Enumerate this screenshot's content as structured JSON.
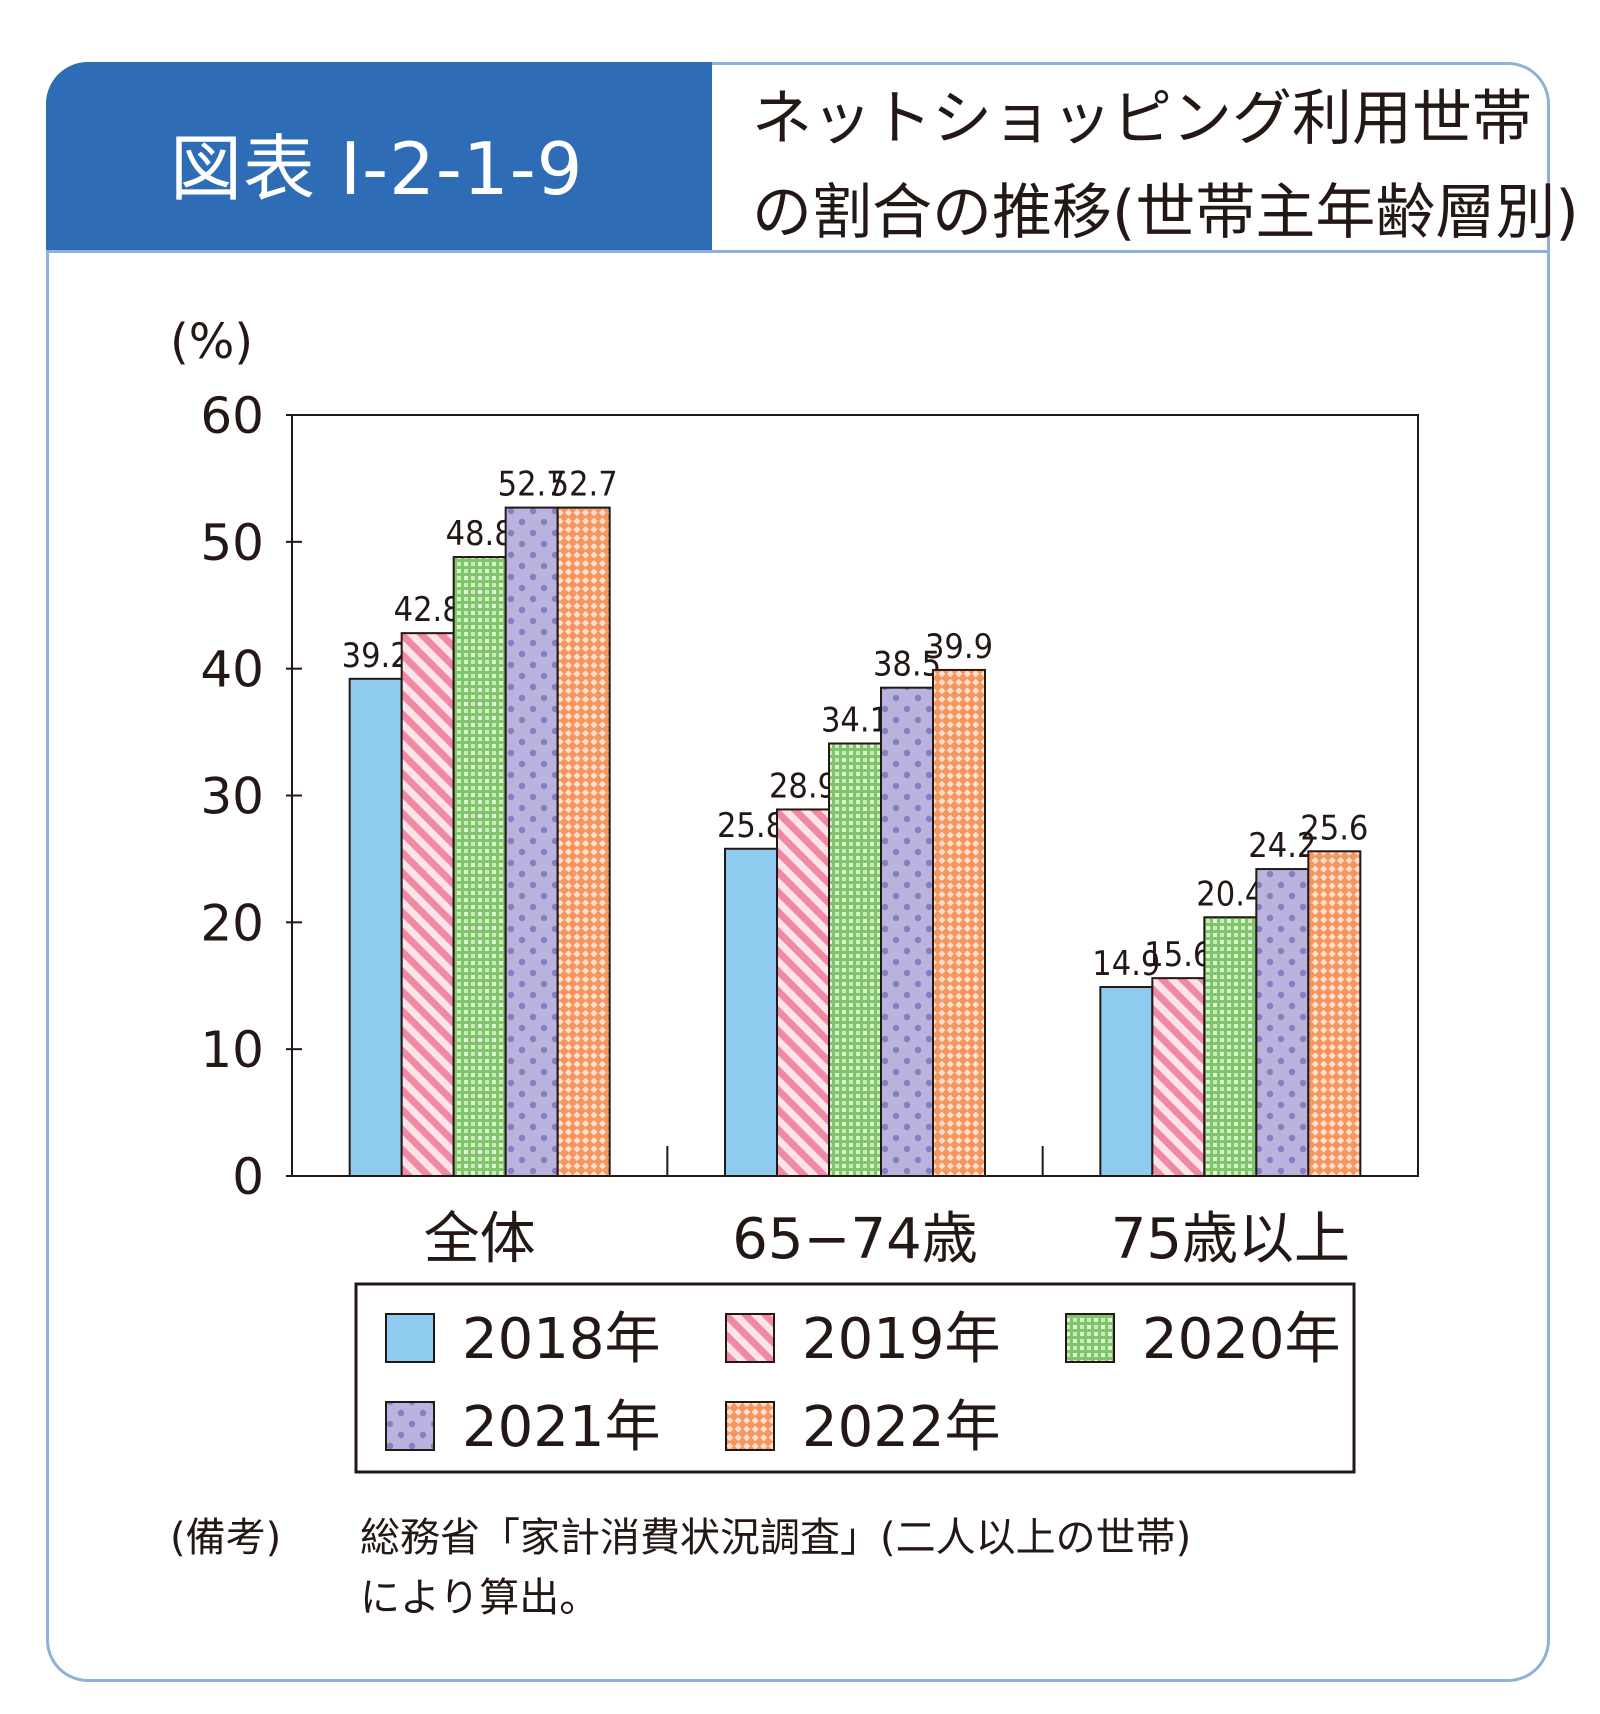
{
  "figure": {
    "id": "図表 I-2-1-9",
    "title_lines": [
      "ネットショッピング利用世帯",
      "の割合の推移(世帯主年齢層別)"
    ]
  },
  "note": {
    "label": "(備考)",
    "lines": [
      "総務省「家計消費状況調査」(二人以上の世帯)",
      "により算出。"
    ]
  },
  "chart_data": {
    "type": "bar",
    "ylabel": "(%)",
    "ylim": [
      0,
      60
    ],
    "yticks": [
      0,
      10,
      20,
      30,
      40,
      50,
      60
    ],
    "categories": [
      "全体",
      "65−74歳",
      "75歳以上"
    ],
    "series": [
      {
        "name": "2018年",
        "values": [
          39.2,
          25.8,
          14.9
        ],
        "labels": [
          "39.2",
          "25.8",
          "14.9"
        ],
        "color": "#8ecbef",
        "pattern": "solid"
      },
      {
        "name": "2019年",
        "values": [
          42.8,
          28.9,
          15.6
        ],
        "labels": [
          "42.8",
          "28.9",
          "15.6"
        ],
        "color": "#f5a3b5",
        "pattern": "diagonal-stripes"
      },
      {
        "name": "2020年",
        "values": [
          48.8,
          34.1,
          20.4
        ],
        "labels": [
          "48.8",
          "34.1",
          "20.4"
        ],
        "color": "#9fd58a",
        "pattern": "checker"
      },
      {
        "name": "2021年",
        "values": [
          52.7,
          38.5,
          24.2
        ],
        "labels": [
          "52.7",
          "38.5",
          "24.2"
        ],
        "color": "#b6b0dc",
        "pattern": "dots"
      },
      {
        "name": "2022年",
        "values": [
          52.7,
          39.9,
          25.6
        ],
        "labels": [
          "52.7",
          "39.9",
          "25.6"
        ],
        "color": "#f7a679",
        "pattern": "crosshatch"
      }
    ],
    "legend": {
      "placement": "bottom"
    }
  }
}
